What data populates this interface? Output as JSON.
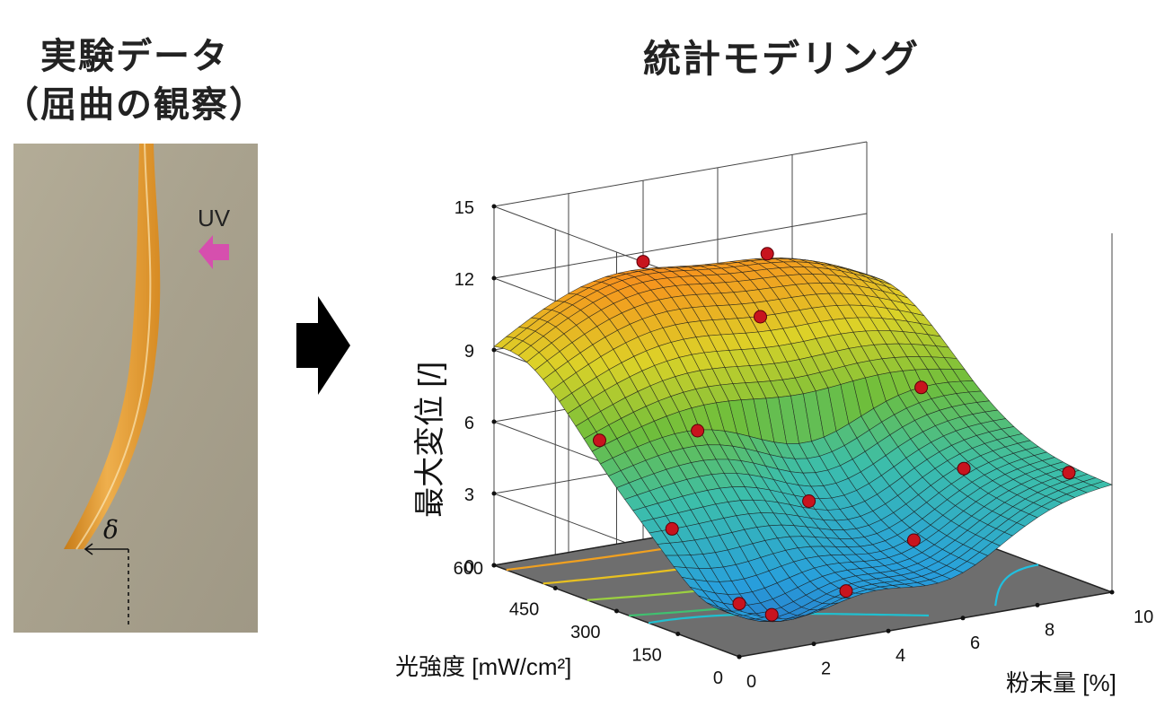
{
  "left_panel": {
    "title_line1": "実験データ",
    "title_line2": "（屈曲の観察）",
    "uv_label": "UV",
    "delta_label": "δ"
  },
  "right_panel": {
    "title": "統計モデリング"
  },
  "colors": {
    "photo_bg": "#a9a28e",
    "strip": "#e39a2c",
    "uv_arrow": "#d64fae",
    "floor": "#6e6e6e",
    "data_point": "#c8141e"
  },
  "chart_data": {
    "type": "surface3d",
    "zlabel": "最大変位 [/]",
    "xlabel": "粉末量 [%]",
    "ylabel": "光強度 [mW/cm²]",
    "x_ticks": [
      "0",
      "2",
      "4",
      "6",
      "8",
      "10"
    ],
    "y_ticks": [
      "0",
      "150",
      "300",
      "450",
      "600"
    ],
    "z_ticks": [
      "0",
      "3",
      "6",
      "9",
      "12",
      "15"
    ],
    "xlim": [
      0,
      10
    ],
    "ylim": [
      0,
      600
    ],
    "zlim": [
      0,
      15
    ],
    "grid": true,
    "contours_on_floor": true
  }
}
